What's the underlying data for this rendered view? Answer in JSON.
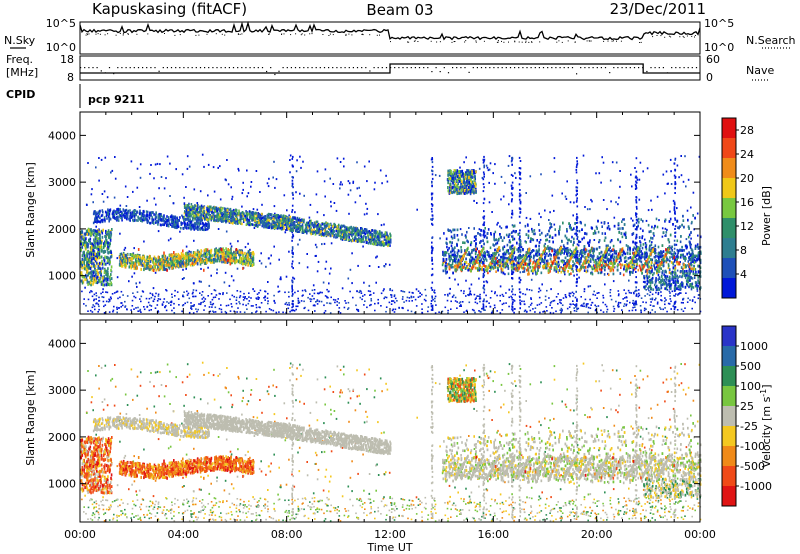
{
  "header": {
    "station": "Kapuskasing (fitACF)",
    "beam": "Beam 03",
    "date": "23/Dec/2011"
  },
  "noise_panel": {
    "left_label": "N.Sky",
    "right_label": "N.Search",
    "left_ticks": [
      "10^5",
      "10^0"
    ],
    "right_ticks": [
      "10^5",
      "10^0"
    ]
  },
  "freq_panel": {
    "left_label_line1": "Freq.",
    "left_label_line2": "[MHz]",
    "left_ticks": [
      "18",
      "8"
    ],
    "right_label": "Nave",
    "right_ticks": [
      "60",
      "0"
    ]
  },
  "cpid": {
    "label": "CPID",
    "program": "pcp 9211"
  },
  "colors": {
    "power_scale": [
      "#0018d8",
      "#1e50b8",
      "#2e7e90",
      "#2f8f6a",
      "#78c840",
      "#f0c818",
      "#f08c1a",
      "#f04818",
      "#e01010"
    ],
    "velocity_scale": [
      "#2a34c8",
      "#286aa8",
      "#2d8f55",
      "#78c640",
      "#bdbdb0",
      "#f4c820",
      "#f08a18",
      "#f04a18",
      "#e01414"
    ]
  },
  "chart_data": [
    {
      "type": "heatmap",
      "name": "power",
      "ylabel": "Slant Range [km]",
      "y_ticks": [
        "1000",
        "2000",
        "3000",
        "4000"
      ],
      "ylim": [
        180,
        4500
      ],
      "xlim_hours": [
        0,
        24
      ],
      "colorbar_label": "Power [dB]",
      "colorbar_ticks": [
        "4",
        "8",
        "12",
        "16",
        "20",
        "24",
        "28"
      ],
      "colorbar_range": [
        0,
        30
      ]
    },
    {
      "type": "heatmap",
      "name": "velocity",
      "ylabel": "Slant Range [km]",
      "y_ticks": [
        "1000",
        "2000",
        "3000",
        "4000"
      ],
      "ylim": [
        180,
        4500
      ],
      "xlim_hours": [
        0,
        24
      ],
      "colorbar_label": "Velocity [m s-1]",
      "colorbar_ticks": [
        "1000",
        "500",
        "100",
        "25",
        "-25",
        "-100",
        "-500",
        "-1000"
      ]
    }
  ],
  "x_axis": {
    "ticks": [
      "00:00",
      "04:00",
      "08:00",
      "12:00",
      "16:00",
      "20:00",
      "00:00"
    ],
    "label": "Time UT"
  }
}
